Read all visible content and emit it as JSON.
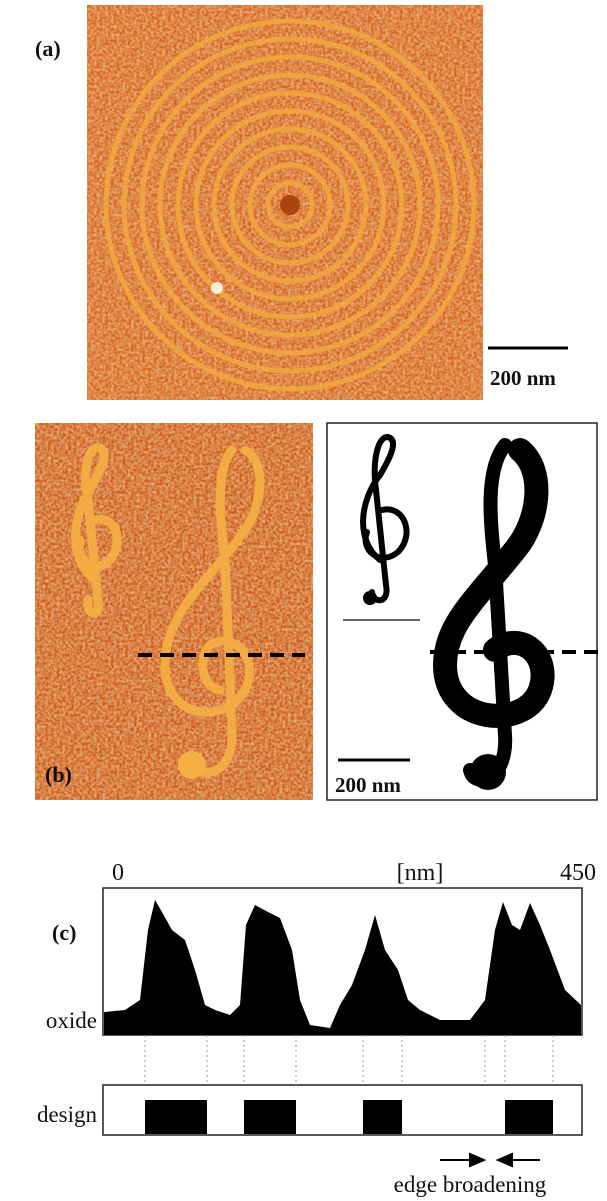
{
  "panel_a": {
    "label": "(a)",
    "scale_bar": "200 nm"
  },
  "panel_b": {
    "label": "(b)",
    "scale_bar": "200 nm"
  },
  "panel_c": {
    "label": "(c)",
    "axis_start": 0,
    "axis_unit": "[nm]",
    "axis_end": 450,
    "profile_label": "oxide",
    "design_label": "design",
    "annotation": "edge broadening"
  }
}
